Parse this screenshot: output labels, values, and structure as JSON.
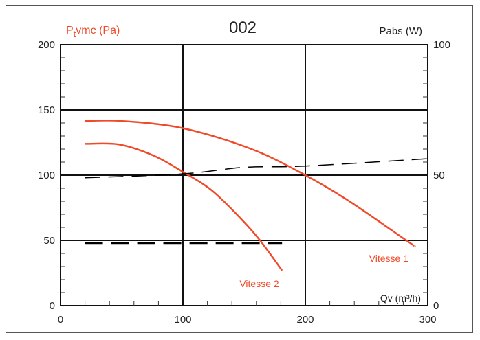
{
  "chart_data": {
    "type": "line",
    "title": "002",
    "xlabel": "Qv (m³/h)",
    "ylabel_left": "Ptvmc (Pa)",
    "ylabel_right": "Pabs (W)",
    "xlim": [
      0,
      300
    ],
    "ylim_left": [
      0,
      200
    ],
    "ylim_right": [
      0,
      100
    ],
    "x_ticks": [
      "0",
      "100",
      "200",
      "300"
    ],
    "y_ticks_left": [
      "0",
      "50",
      "100",
      "150",
      "200"
    ],
    "y_ticks_right": [
      "0",
      "50",
      "100"
    ],
    "grid": true,
    "series": [
      {
        "name": "Vitesse 1",
        "axis": "left",
        "style": "solid",
        "color": "#f04a2a",
        "x": [
          20,
          50,
          100,
          156,
          200,
          236,
          284,
          289
        ],
        "y": [
          141.5,
          141.5,
          136,
          120,
          100,
          80,
          49,
          46
        ]
      },
      {
        "name": "Vitesse 2",
        "axis": "left",
        "style": "solid",
        "color": "#f04a2a",
        "x": [
          20,
          48,
          76,
          100,
          124,
          148,
          163,
          181
        ],
        "y": [
          124,
          123.5,
          115,
          102.5,
          88,
          66,
          50,
          27
        ]
      },
      {
        "axis": "right",
        "style": "dashed-thin",
        "color": "#000000",
        "x": [
          20,
          100,
          150,
          200,
          300
        ],
        "y": [
          49,
          50.5,
          53,
          53.5,
          56.3
        ]
      },
      {
        "axis": "right",
        "style": "dashed-thick",
        "color": "#000000",
        "x": [
          20,
          181
        ],
        "y": [
          24,
          24
        ]
      }
    ]
  }
}
